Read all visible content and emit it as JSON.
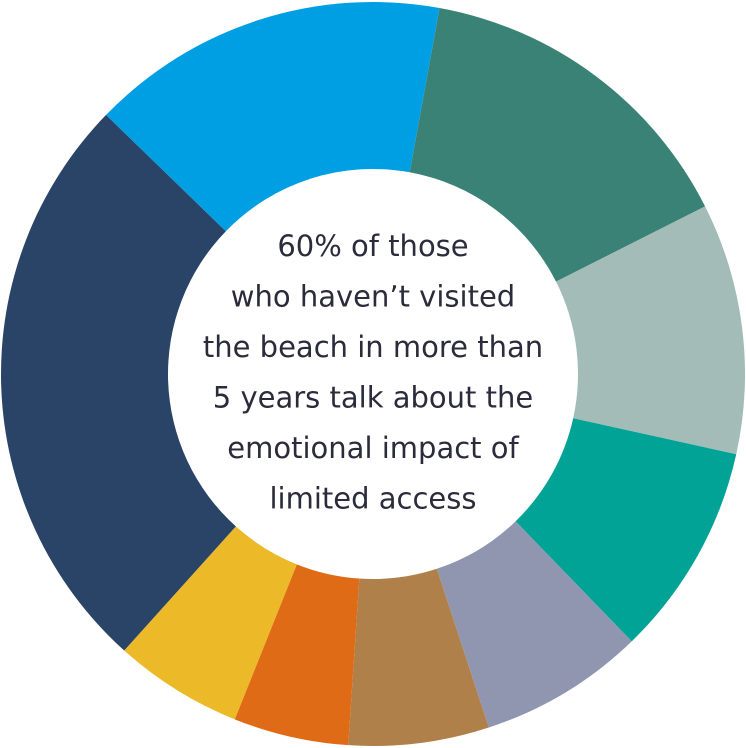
{
  "chart_data": {
    "type": "donut",
    "categories": [
      null,
      null,
      null,
      null,
      null,
      null,
      null,
      null,
      null
    ],
    "values": [
      14.7,
      10.9,
      9.3,
      7.2,
      6.1,
      5.0,
      5.6,
      25.6,
      15.6
    ],
    "colors": [
      "#3a8276",
      "#a3bcb8",
      "#00a396",
      "#9096b0",
      "#b0804a",
      "#e06b17",
      "#ecb928",
      "#2a4468",
      "#009fe3"
    ],
    "center_text": [
      "60% of those",
      "who haven’t visited",
      "the beach in more than",
      "5 years talk about the",
      "emotional impact of",
      "limited access"
    ]
  }
}
